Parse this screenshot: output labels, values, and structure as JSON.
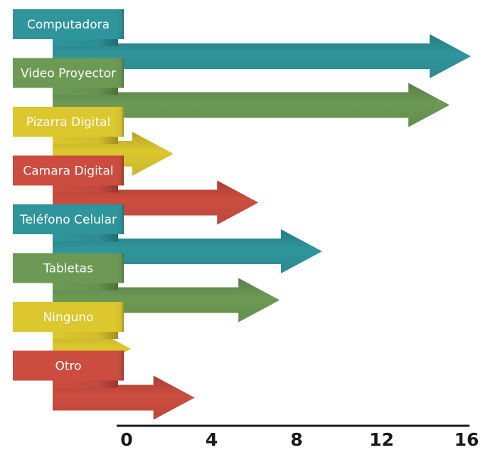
{
  "chart_data": {
    "type": "bar",
    "orientation": "horizontal",
    "categories": [
      "Computadora",
      "Video Proyector",
      "Pizarra Digital",
      "Camara Digital",
      "Teléfono Celular",
      "Tabletas",
      "Ninguno",
      "Otro"
    ],
    "values": [
      16,
      15,
      2,
      6,
      9,
      7,
      0,
      3
    ],
    "colors": [
      "#2f959c",
      "#6c9a54",
      "#dcc72e",
      "#cc4d40",
      "#2f959c",
      "#6c9a54",
      "#dcc72e",
      "#cc4d40"
    ],
    "xlim": [
      0,
      16
    ],
    "xticks": [
      "0",
      "4",
      "8",
      "12",
      "16"
    ],
    "title": "",
    "xlabel": "",
    "ylabel": "",
    "grid": false,
    "legend": false
  }
}
